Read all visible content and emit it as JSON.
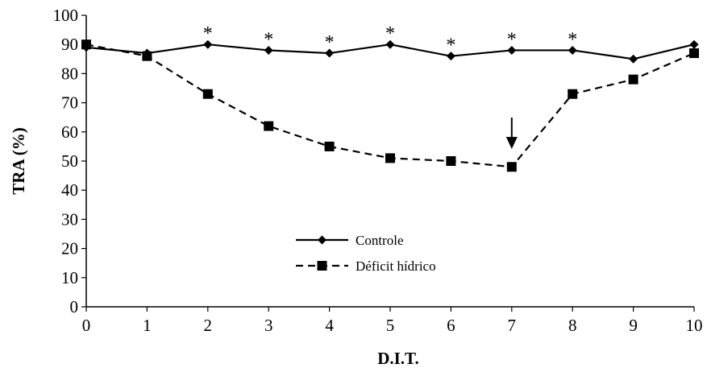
{
  "chart_data": {
    "type": "line",
    "title": "",
    "xlabel": "D.I.T.",
    "ylabel": "TRA (%)",
    "x": [
      0,
      1,
      2,
      3,
      4,
      5,
      6,
      7,
      8,
      9,
      10
    ],
    "xlim": [
      0,
      10
    ],
    "ylim": [
      0,
      100
    ],
    "xticks": [
      "0",
      "1",
      "2",
      "3",
      "4",
      "5",
      "6",
      "7",
      "8",
      "9",
      "10"
    ],
    "yticks": [
      "0",
      "10",
      "20",
      "30",
      "40",
      "50",
      "60",
      "70",
      "80",
      "90",
      "100"
    ],
    "grid": false,
    "legend_position": "bottom-center",
    "series": [
      {
        "name": "Controle",
        "values": [
          89,
          87,
          90,
          88,
          87,
          90,
          86,
          88,
          88,
          85,
          90
        ],
        "marker": "diamond",
        "line_style": "solid",
        "color": "#000000"
      },
      {
        "name": "Déficit hídrico",
        "values": [
          90,
          86,
          73,
          62,
          55,
          51,
          50,
          48,
          73,
          78,
          87
        ],
        "marker": "square",
        "line_style": "dashed",
        "color": "#000000"
      }
    ],
    "annotations": [
      {
        "type": "significance",
        "text": "*",
        "x": [
          2,
          3,
          4,
          5,
          6,
          7,
          8
        ]
      },
      {
        "type": "arrow",
        "x": 7,
        "direction": "down"
      }
    ]
  }
}
